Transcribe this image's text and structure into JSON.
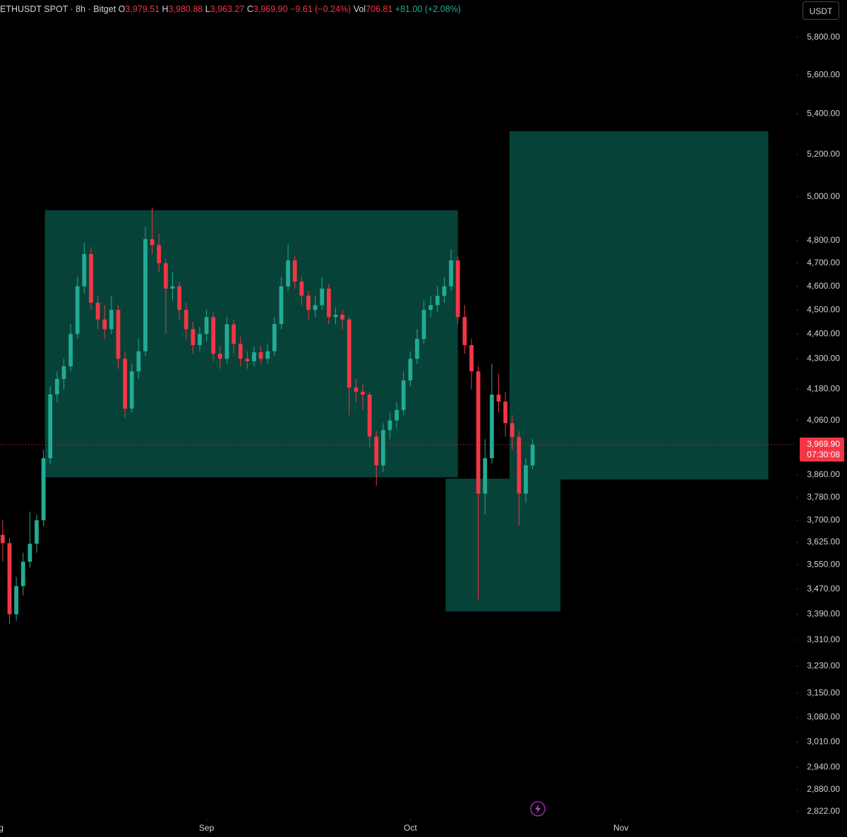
{
  "header": {
    "symbol": "ETHUSDT SPOT · 8h · Bitget",
    "open_label": "O",
    "open": "3,979.51",
    "high_label": "H",
    "high": "3,980.88",
    "low_label": "L",
    "low": "3,963.27",
    "close_label": "C",
    "close": "3,969.90",
    "change": "−9.61 (−0.24%)",
    "vol_label": "Vol",
    "vol": "706.81",
    "vol_change": "+81.00 (+2.08%)"
  },
  "currency_button": "USDT",
  "last_price_label": "3,969.90",
  "countdown": "07:30:08",
  "chart_data": {
    "type": "candlestick",
    "log": true,
    "up_color": "#22ab94",
    "down_color": "#f23645",
    "zone_color": "#07463b",
    "last_price_color": "#f23645",
    "xlim": [
      -30.4,
      86.8
    ],
    "ylim": [
      2803,
      6004
    ],
    "xticks": [
      {
        "value": -31,
        "label": "Aug"
      },
      {
        "value": 0,
        "label": "Sep"
      },
      {
        "value": 30,
        "label": "Oct"
      },
      {
        "value": 61,
        "label": "Nov"
      }
    ],
    "yticks": [
      {
        "value": 5800,
        "label": "5,800.00"
      },
      {
        "value": 5600,
        "label": "5,600.00"
      },
      {
        "value": 5400,
        "label": "5,400.00"
      },
      {
        "value": 5200,
        "label": "5,200.00"
      },
      {
        "value": 5000,
        "label": "5,000.00"
      },
      {
        "value": 4800,
        "label": "4,800.00"
      },
      {
        "value": 4700,
        "label": "4,700.00"
      },
      {
        "value": 4600,
        "label": "4,600.00"
      },
      {
        "value": 4500,
        "label": "4,500.00"
      },
      {
        "value": 4400,
        "label": "4,400.00"
      },
      {
        "value": 4300,
        "label": "4,300.00"
      },
      {
        "value": 4180,
        "label": "4,180.00"
      },
      {
        "value": 4060,
        "label": "4,060.00"
      },
      {
        "value": 3860,
        "label": "3,860.00"
      },
      {
        "value": 3780,
        "label": "3,780.00"
      },
      {
        "value": 3700,
        "label": "3,700.00"
      },
      {
        "value": 3625,
        "label": "3,625.00"
      },
      {
        "value": 3550,
        "label": "3,550.00"
      },
      {
        "value": 3470,
        "label": "3,470.00"
      },
      {
        "value": 3390,
        "label": "3,390.00"
      },
      {
        "value": 3310,
        "label": "3,310.00"
      },
      {
        "value": 3230,
        "label": "3,230.00"
      },
      {
        "value": 3150,
        "label": "3,150.00"
      },
      {
        "value": 3080,
        "label": "3,080.00"
      },
      {
        "value": 3010,
        "label": "3,010.00"
      },
      {
        "value": 2940,
        "label": "2,940.00"
      },
      {
        "value": 2880,
        "label": "2,880.00"
      },
      {
        "value": 2822,
        "label": "2,822.00"
      }
    ],
    "zones": [
      {
        "x": [
          -23.8,
          37
        ],
        "y": [
          3851,
          4937
        ]
      },
      {
        "x": [
          35.2,
          52.1
        ],
        "y": [
          3399,
          3846
        ]
      },
      {
        "x": [
          44.6,
          82.7
        ],
        "y": [
          3843,
          5314
        ]
      }
    ],
    "x": [
      -30,
      -29,
      -28,
      -27,
      -26,
      -25,
      -24,
      -23,
      -22,
      -21,
      -20,
      -19,
      -18,
      -17,
      -16,
      -15,
      -14,
      -13,
      -12,
      -11,
      -10,
      -9,
      -8,
      -7,
      -6,
      -5,
      -4,
      -3,
      -2,
      -1,
      0,
      1,
      2,
      3,
      4,
      5,
      6,
      7,
      8,
      9,
      10,
      11,
      12,
      13,
      14,
      15,
      16,
      17,
      18,
      19,
      20,
      21,
      22,
      23,
      24,
      25,
      26,
      27,
      28,
      29,
      30,
      31,
      32,
      33,
      34,
      35,
      36,
      37,
      38,
      39,
      40,
      41,
      42,
      43,
      44,
      45,
      46,
      47,
      48
    ],
    "open": [
      3650,
      3622,
      3390,
      3480,
      3560,
      3620,
      3700,
      3920,
      4160,
      4220,
      4270,
      4400,
      4600,
      4740,
      4530,
      4460,
      4420,
      4500,
      4300,
      4105,
      4250,
      4330,
      4806,
      4780,
      4700,
      4590,
      4600,
      4500,
      4420,
      4355,
      4400,
      4470,
      4320,
      4300,
      4440,
      4360,
      4300,
      4290,
      4326,
      4300,
      4330,
      4441,
      4600,
      4712,
      4620,
      4560,
      4500,
      4520,
      4590,
      4470,
      4480,
      4460,
      4186,
      4170,
      4159,
      4000,
      3894,
      4024,
      4060,
      4100,
      4214,
      4300,
      4380,
      4500,
      4520,
      4559,
      4600,
      4712,
      4470,
      4355,
      4250,
      3793,
      3920,
      4159,
      4132,
      4050,
      3998,
      3793,
      3894
    ],
    "high": [
      3700,
      3640,
      3510,
      3590,
      3730,
      3720,
      3950,
      4190,
      4250,
      4300,
      4440,
      4640,
      4790,
      4770,
      4560,
      4520,
      4560,
      4520,
      4330,
      4280,
      4380,
      4860,
      4950,
      4830,
      4720,
      4660,
      4620,
      4530,
      4450,
      4430,
      4500,
      4490,
      4350,
      4470,
      4460,
      4390,
      4330,
      4350,
      4350,
      4360,
      4470,
      4640,
      4780,
      4730,
      4640,
      4580,
      4560,
      4640,
      4610,
      4510,
      4500,
      4470,
      4220,
      4200,
      4170,
      4020,
      4050,
      4090,
      4130,
      4250,
      4330,
      4420,
      4540,
      4560,
      4600,
      4640,
      4760,
      4730,
      4520,
      4380,
      4270,
      3990,
      4280,
      4240,
      4170,
      4080,
      4020,
      3920,
      3990
    ],
    "low": [
      3560,
      3360,
      3370,
      3450,
      3540,
      3590,
      3680,
      3900,
      4130,
      4180,
      4250,
      4380,
      4570,
      4500,
      4420,
      4380,
      4400,
      4260,
      4070,
      4090,
      4220,
      4310,
      4740,
      4660,
      4400,
      4540,
      4460,
      4380,
      4320,
      4330,
      4370,
      4290,
      4260,
      4280,
      4320,
      4270,
      4260,
      4270,
      4280,
      4280,
      4310,
      4420,
      4580,
      4590,
      4520,
      4460,
      4470,
      4500,
      4440,
      4440,
      4420,
      4080,
      4130,
      4100,
      3960,
      3820,
      3870,
      3990,
      4030,
      4080,
      4190,
      4280,
      4360,
      4470,
      4490,
      4530,
      4580,
      4440,
      4320,
      4180,
      3437,
      3720,
      3900,
      4090,
      4000,
      3950,
      3683,
      3760,
      3880
    ],
    "close": [
      3622,
      3390,
      3480,
      3560,
      3620,
      3700,
      3920,
      4160,
      4220,
      4270,
      4400,
      4600,
      4740,
      4530,
      4460,
      4420,
      4500,
      4300,
      4105,
      4250,
      4330,
      4806,
      4780,
      4700,
      4590,
      4600,
      4500,
      4420,
      4355,
      4400,
      4470,
      4320,
      4300,
      4440,
      4360,
      4300,
      4290,
      4326,
      4300,
      4330,
      4441,
      4600,
      4712,
      4620,
      4560,
      4500,
      4520,
      4590,
      4470,
      4480,
      4460,
      4186,
      4170,
      4159,
      4000,
      3894,
      4024,
      4060,
      4100,
      4214,
      4300,
      4380,
      4500,
      4520,
      4559,
      4600,
      4712,
      4470,
      4355,
      4250,
      3793,
      3920,
      4159,
      4132,
      4050,
      3998,
      3793,
      3894,
      3969.9
    ]
  }
}
